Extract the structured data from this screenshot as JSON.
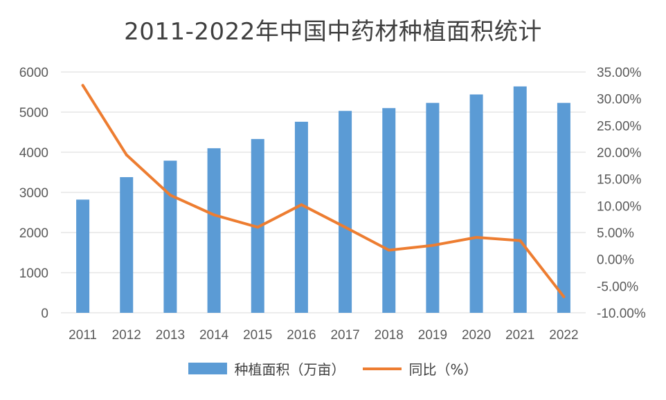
{
  "chart_data": {
    "type": "bar+line",
    "title": "2011-2022年中国中药材种植面积统计",
    "categories": [
      "2011",
      "2012",
      "2013",
      "2014",
      "2015",
      "2016",
      "2017",
      "2018",
      "2019",
      "2020",
      "2021",
      "2022"
    ],
    "series": [
      {
        "name": "种植面积（万亩）",
        "type": "bar",
        "axis": "left",
        "color": "#5B9BD5",
        "values": [
          2820,
          3380,
          3790,
          4100,
          4330,
          4760,
          5030,
          5100,
          5230,
          5440,
          5640,
          5230
        ]
      },
      {
        "name": "同比（%）",
        "type": "line",
        "axis": "right",
        "color": "#ED7D31",
        "values": [
          32.5,
          19.5,
          12.0,
          8.3,
          6.0,
          10.2,
          6.0,
          1.7,
          2.6,
          4.1,
          3.5,
          -7.0
        ]
      }
    ],
    "y_left": {
      "min": 0,
      "max": 6000,
      "ticks": [
        0,
        1000,
        2000,
        3000,
        4000,
        5000,
        6000
      ]
    },
    "y_right": {
      "min": -10,
      "max": 35,
      "ticks": [
        -10,
        -5,
        0,
        5,
        10,
        15,
        20,
        25,
        30,
        35
      ],
      "tick_labels": [
        "-10.00%",
        "-5.00%",
        "0.00%",
        "5.00%",
        "10.00%",
        "15.00%",
        "20.00%",
        "25.00%",
        "30.00%",
        "35.00%"
      ]
    },
    "grid": "horizontal",
    "grid_color": "#D9D9D9",
    "legend": "bottom-center"
  }
}
